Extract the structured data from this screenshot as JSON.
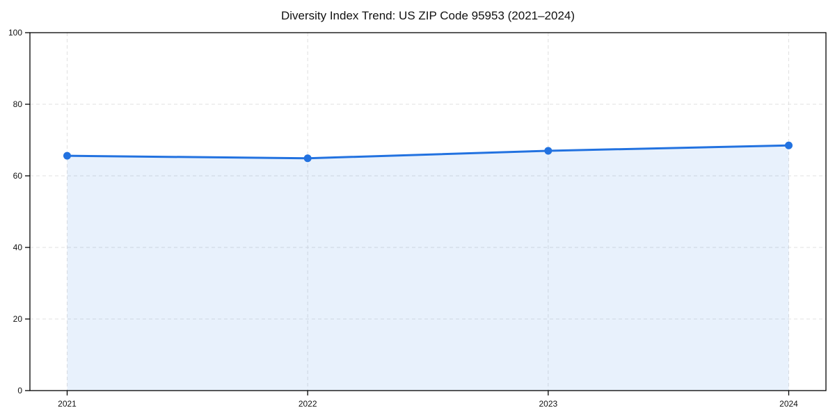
{
  "chart_data": {
    "type": "line",
    "title": "Diversity Index Trend: US ZIP Code 95953 (2021–2024)",
    "categories": [
      "2021",
      "2022",
      "2023",
      "2024"
    ],
    "series": [
      {
        "name": "Diversity Index",
        "values": [
          65.6,
          64.9,
          67.0,
          68.5
        ]
      }
    ],
    "xlabel": "",
    "ylabel": "",
    "ylim": [
      0,
      100
    ],
    "yticks": [
      0,
      20,
      40,
      60,
      80,
      100
    ],
    "grid": true,
    "grid_style": "dashed",
    "legend": false,
    "area_fill": true,
    "marker": "circle",
    "colors": {
      "line": "#2272e0",
      "marker": "#2272e0",
      "fill": "rgba(34,114,224,0.10)",
      "grid": "#e0e0e0",
      "axis": "#000000",
      "text": "#111111"
    }
  }
}
